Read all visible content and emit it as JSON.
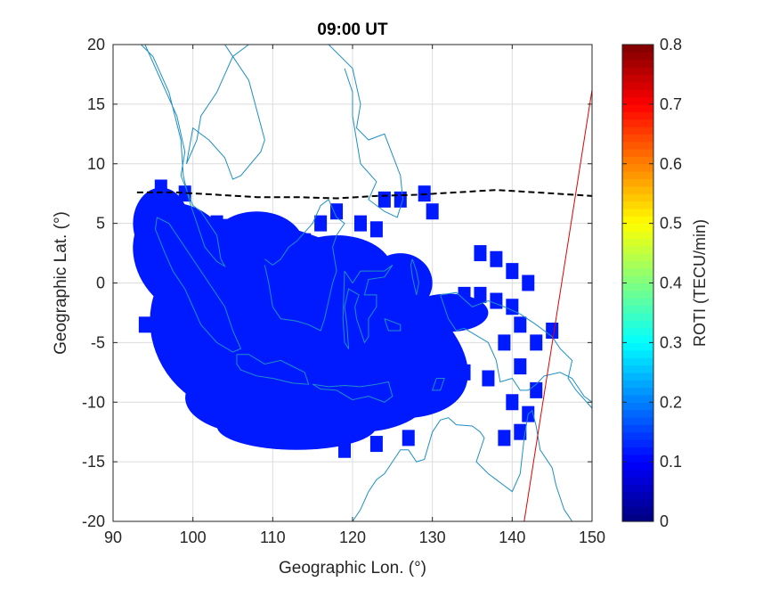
{
  "chart_data": {
    "type": "heatmap",
    "title": "09:00 UT",
    "xlabel": "Geographic Lon. (°)",
    "ylabel": "Geographic Lat. (°)",
    "colorbar_label": "ROTI (TECU/min)",
    "xlim": [
      90,
      150
    ],
    "ylim": [
      -20,
      20
    ],
    "clim": [
      0,
      0.8
    ],
    "colormap": "jet",
    "grid": true,
    "x_ticks": [
      "90",
      "100",
      "110",
      "120",
      "130",
      "140",
      "150"
    ],
    "y_ticks": [
      "20",
      "15",
      "10",
      "5",
      "0",
      "-5",
      "-10",
      "-15",
      "-20"
    ],
    "colorbar_ticks": [
      "0.8",
      "0.7",
      "0.6",
      "0.5",
      "0.4",
      "0.3",
      "0.2",
      "0.1",
      "0"
    ],
    "colors": {
      "coastline": "#1f8fc4",
      "dashed_line": "#000000",
      "red_line": "#e00000",
      "roti_dominant": "#1a2fe0"
    },
    "roti_value_typical": 0.12,
    "dashed_line": [
      [
        93,
        7.6
      ],
      [
        98,
        7.6
      ],
      [
        103,
        7.4
      ],
      [
        108,
        7.2
      ],
      [
        113,
        7.2
      ],
      [
        118,
        7.1
      ],
      [
        123,
        7.3
      ],
      [
        128,
        7.4
      ],
      [
        133,
        7.6
      ],
      [
        138,
        7.8
      ],
      [
        143,
        7.6
      ],
      [
        150,
        7.3
      ]
    ],
    "red_line": [
      [
        141.5,
        -20
      ],
      [
        150,
        16.2
      ]
    ]
  }
}
